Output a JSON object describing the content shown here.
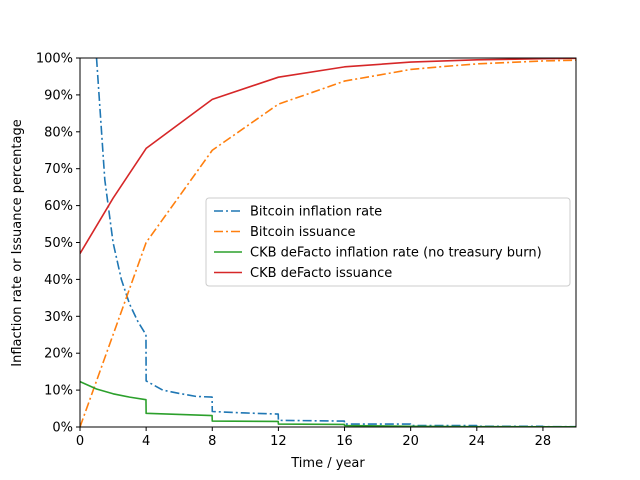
{
  "chart_data": {
    "type": "line",
    "title": "",
    "xlabel": "Time / year",
    "ylabel": "Inflaction rate or Issuance percentage",
    "xlim": [
      0,
      30
    ],
    "ylim": [
      0,
      100
    ],
    "xticks": [
      0,
      4,
      8,
      12,
      16,
      20,
      24,
      28
    ],
    "yticks": [
      0,
      10,
      20,
      30,
      40,
      50,
      60,
      70,
      80,
      90,
      100
    ],
    "xtick_labels": [
      "0",
      "4",
      "8",
      "12",
      "16",
      "20",
      "24",
      "28"
    ],
    "ytick_labels": [
      "0%",
      "10%",
      "20%",
      "30%",
      "40%",
      "50%",
      "60%",
      "70%",
      "80%",
      "90%",
      "100%"
    ],
    "grid": false,
    "legend_position": "center-right",
    "series": [
      {
        "name": "Bitcoin inflation rate",
        "color": "#1f77b4",
        "style": "dashdot",
        "x": [
          1,
          1.5,
          2,
          2.5,
          3,
          3.5,
          3.99,
          4,
          5,
          6,
          7,
          7.99,
          8,
          10,
          11.99,
          12,
          15.99,
          16,
          19.99,
          20,
          23.99,
          24,
          27.99,
          28,
          30
        ],
        "y": [
          100,
          67,
          50,
          40,
          33.3,
          28.6,
          25,
          12.5,
          10,
          9.1,
          8.3,
          8.1,
          4.2,
          3.8,
          3.5,
          1.8,
          1.6,
          0.8,
          0.8,
          0.4,
          0.4,
          0.2,
          0.2,
          0.1,
          0.1
        ]
      },
      {
        "name": "Bitcoin issuance",
        "color": "#ff7f0e",
        "style": "dashdot",
        "x": [
          0,
          1,
          2,
          3,
          4,
          5,
          6,
          7,
          8,
          10,
          12,
          14,
          16,
          18,
          20,
          22,
          24,
          26,
          28,
          30
        ],
        "y": [
          0,
          12.5,
          25,
          37.5,
          50,
          56.25,
          62.5,
          68.75,
          75,
          81.25,
          87.5,
          90.6,
          93.75,
          95.3,
          96.9,
          97.7,
          98.4,
          98.8,
          99.2,
          99.4
        ]
      },
      {
        "name": "CKB deFacto inflation rate (no treasury burn)",
        "color": "#2ca02c",
        "style": "solid",
        "x": [
          0,
          1,
          2,
          3,
          3.99,
          4,
          6,
          7.99,
          8,
          11.99,
          12,
          15.99,
          16,
          20,
          24,
          28,
          30
        ],
        "y": [
          12.3,
          10.3,
          9,
          8.1,
          7.4,
          3.7,
          3.4,
          3.1,
          1.6,
          1.5,
          0.8,
          0.7,
          0.4,
          0.2,
          0.1,
          0.05,
          0.05
        ]
      },
      {
        "name": "CKB deFacto issuance",
        "color": "#d62728",
        "style": "solid",
        "x": [
          0,
          2,
          4,
          8,
          12,
          16,
          20,
          24,
          28,
          30
        ],
        "y": [
          47,
          62,
          75.5,
          88.8,
          94.8,
          97.6,
          98.9,
          99.5,
          99.8,
          99.9
        ]
      }
    ]
  }
}
